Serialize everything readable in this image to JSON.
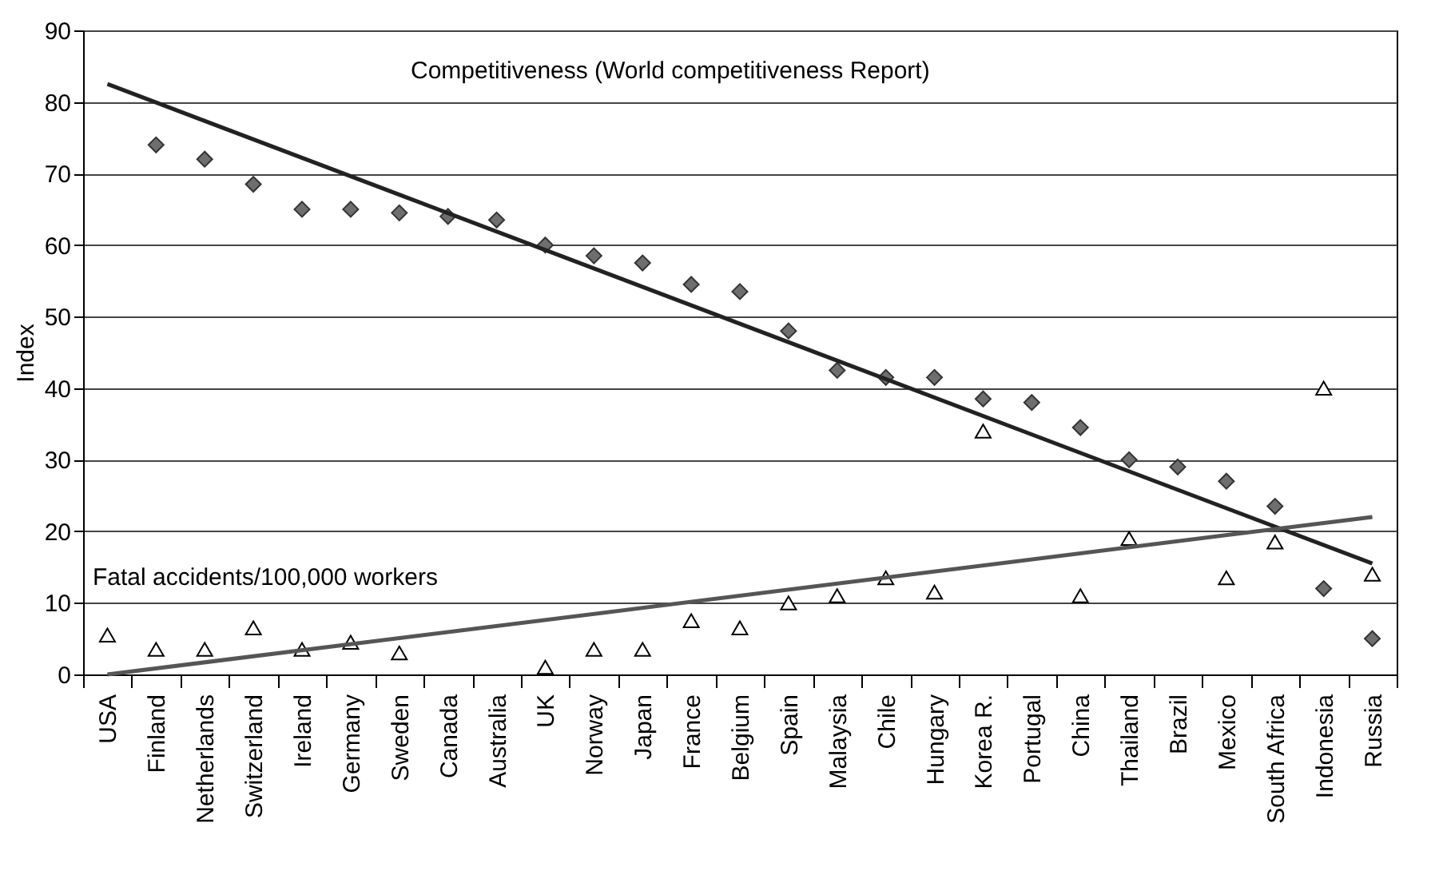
{
  "chart_data": {
    "type": "scatter",
    "ylabel": "Index",
    "categories": [
      "USA",
      "Finland",
      "Netherlands",
      "Switzerland",
      "Ireland",
      "Germany",
      "Sweden",
      "Canada",
      "Australia",
      "UK",
      "Norway",
      "Japan",
      "France",
      "Belgium",
      "Spain",
      "Malaysia",
      "Chile",
      "Hungary",
      "Korea R.",
      "Portugal",
      "China",
      "Thailand",
      "Brazil",
      "Mexico",
      "South Africa",
      "Indonesia",
      "Russia"
    ],
    "series": [
      {
        "marker": "diamond",
        "color": "#6e6e6e",
        "values": [
          null,
          74,
          72,
          68.5,
          65,
          65,
          64.5,
          64,
          63.5,
          60,
          58.5,
          57.5,
          54.5,
          53.5,
          48,
          42.5,
          41.5,
          41.5,
          38.5,
          38,
          34.5,
          30,
          29,
          27,
          23.5,
          12,
          5
        ]
      },
      {
        "marker": "triangle",
        "color": "#ffffff",
        "values": [
          5.5,
          3.5,
          3.5,
          6.5,
          3.5,
          4.5,
          3,
          null,
          null,
          1,
          3.5,
          3.5,
          7.5,
          6.5,
          10,
          11,
          13.5,
          11.5,
          34,
          null,
          11,
          19,
          null,
          13.5,
          18.5,
          40,
          14
        ]
      },
      {
        "type": "line",
        "color": "#222222",
        "x": [
          "USA",
          "Russia"
        ],
        "values": [
          82.5,
          15.5
        ]
      },
      {
        "type": "line",
        "color": "#555555",
        "x": [
          "USA",
          "Russia"
        ],
        "values": [
          0,
          22
        ]
      }
    ],
    "annotations": [
      "Competitiveness (World competitiveness Report)",
      "Fatal accidents/100,000 workers"
    ],
    "ylim": [
      0,
      90
    ],
    "yticks": [
      0,
      10,
      20,
      30,
      40,
      50,
      60,
      70,
      80,
      90
    ],
    "grid": "y"
  }
}
